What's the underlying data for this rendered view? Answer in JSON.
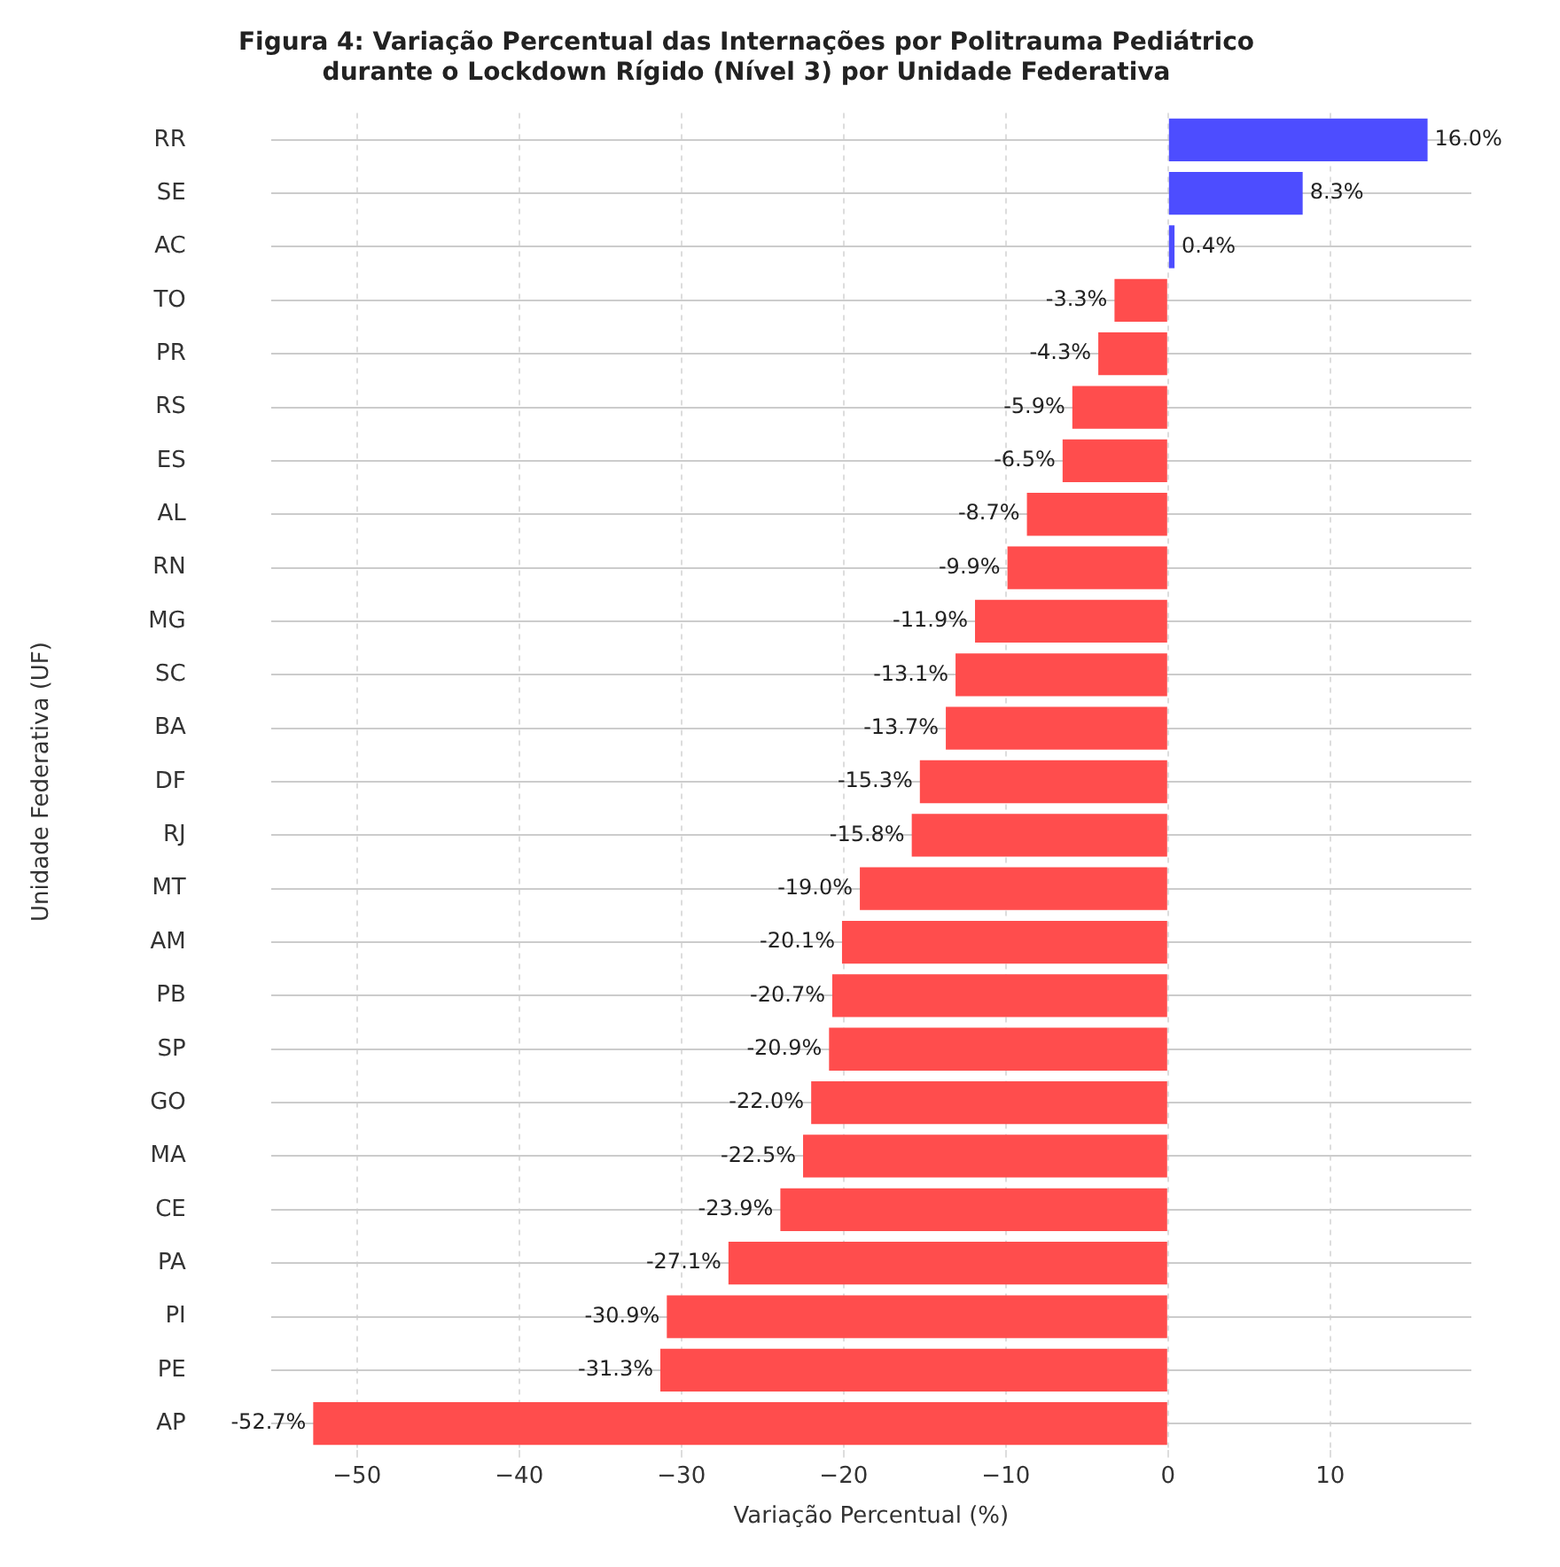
{
  "chart_data": {
    "type": "bar",
    "orientation": "horizontal",
    "title": "Figura 4: Variação Percentual das Internações por Politrauma Pediátrico\ndurante o Lockdown Rígido (Nível 3) por Unidade Federativa",
    "xlabel": "Variação Percentual (%)",
    "ylabel": "Unidade Federativa (UF)",
    "categories": [
      "RR",
      "SE",
      "AC",
      "TO",
      "PR",
      "RS",
      "ES",
      "AL",
      "RN",
      "MG",
      "SC",
      "BA",
      "DF",
      "RJ",
      "MT",
      "AM",
      "PB",
      "SP",
      "GO",
      "MA",
      "CE",
      "PA",
      "PI",
      "PE",
      "AP"
    ],
    "values": [
      16.0,
      8.3,
      0.4,
      -3.3,
      -4.3,
      -5.9,
      -6.5,
      -8.7,
      -9.9,
      -11.9,
      -13.1,
      -13.7,
      -15.3,
      -15.8,
      -19.0,
      -20.1,
      -20.7,
      -20.9,
      -22.0,
      -22.5,
      -23.9,
      -27.1,
      -30.9,
      -31.3,
      -52.7
    ],
    "colors": [
      "#4d4dff",
      "#4d4dff",
      "#4d4dff",
      "#ff4d4d",
      "#ff4d4d",
      "#ff4d4d",
      "#ff4d4d",
      "#ff4d4d",
      "#ff4d4d",
      "#ff4d4d",
      "#ff4d4d",
      "#ff4d4d",
      "#ff4d4d",
      "#ff4d4d",
      "#ff4d4d",
      "#ff4d4d",
      "#ff4d4d",
      "#ff4d4d",
      "#ff4d4d",
      "#ff4d4d",
      "#ff4d4d",
      "#ff4d4d",
      "#ff4d4d",
      "#ff4d4d",
      "#ff4d4d"
    ],
    "value_labels": [
      "16.0%",
      "8.3%",
      "0.4%",
      "-3.3%",
      "-4.3%",
      "-5.9%",
      "-6.5%",
      "-8.7%",
      "-9.9%",
      "-11.9%",
      "-13.1%",
      "-13.7%",
      "-15.3%",
      "-15.8%",
      "-19.0%",
      "-20.1%",
      "-20.7%",
      "-20.9%",
      "-22.0%",
      "-22.5%",
      "-23.9%",
      "-27.1%",
      "-30.9%",
      "-31.3%",
      "-52.7%"
    ],
    "xlim": [
      -55.3,
      18.7
    ],
    "xticks": [
      {
        "value": -50,
        "label": "−50"
      },
      {
        "value": -40,
        "label": "−40"
      },
      {
        "value": -30,
        "label": "−30"
      },
      {
        "value": -20,
        "label": "−20"
      },
      {
        "value": -10,
        "label": "−10"
      },
      0,
      10
    ],
    "grid": true,
    "legend": false
  }
}
